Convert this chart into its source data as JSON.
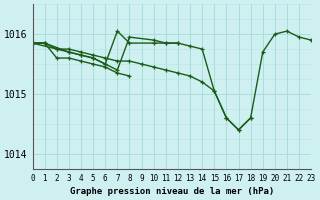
{
  "bg_color": "#cff0f0",
  "grid_major_color": "#aadddd",
  "line_color": "#1a5c1a",
  "xlim": [
    0,
    23
  ],
  "ylim": [
    1013.75,
    1016.5
  ],
  "ytick_labels": [
    "1014",
    "1015",
    "1016"
  ],
  "ytick_vals": [
    1014.0,
    1015.0,
    1016.0
  ],
  "xlabel": "Graphe pression niveau de la mer (hPa)",
  "s1_x": [
    0,
    1,
    2,
    3,
    4,
    5,
    6,
    7,
    8,
    9,
    10,
    11,
    12,
    13,
    14,
    15,
    16,
    17,
    18,
    19,
    20,
    21,
    22,
    23
  ],
  "s1_y": [
    1015.85,
    1015.85,
    1015.75,
    1015.75,
    1015.7,
    1015.65,
    1015.6,
    1015.55,
    1015.55,
    1015.5,
    1015.45,
    1015.4,
    1015.35,
    1015.3,
    1015.2,
    1015.05,
    1014.6,
    1014.4,
    1014.6,
    1015.7,
    1016.0,
    1016.05,
    1015.95,
    1015.9
  ],
  "s2_x": [
    0,
    1,
    3,
    4,
    5,
    6,
    7,
    8,
    10,
    11,
    12,
    13,
    14,
    15,
    16,
    17,
    18
  ],
  "s2_y": [
    1015.85,
    1015.85,
    1015.7,
    1015.65,
    1015.6,
    1015.5,
    1016.05,
    1015.85,
    1015.85,
    1015.85,
    1015.85,
    1015.8,
    1015.75,
    1015.05,
    1014.6,
    1014.4,
    1014.6
  ],
  "s3_x": [
    0,
    2,
    3,
    4,
    5,
    6,
    7,
    8,
    10,
    11,
    12
  ],
  "s3_y": [
    1015.85,
    1015.75,
    1015.7,
    1015.65,
    1015.6,
    1015.5,
    1015.4,
    1015.95,
    1015.9,
    1015.85,
    1015.85
  ],
  "s4_x": [
    0,
    1,
    2,
    3,
    4,
    5,
    6,
    7,
    8
  ],
  "s4_y": [
    1015.85,
    1015.85,
    1015.6,
    1015.6,
    1015.55,
    1015.5,
    1015.45,
    1015.35,
    1015.3
  ]
}
